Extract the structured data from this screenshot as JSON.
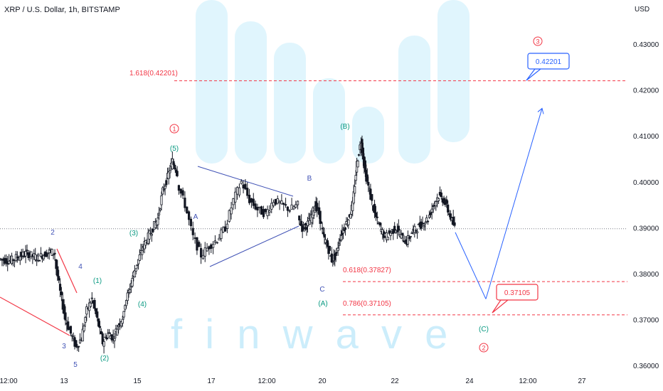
{
  "header": {
    "symbol": "XRP / U.S. Dollar, 1h, BITSTAMP",
    "currency": "USD"
  },
  "watermark": {
    "brand_text": "f i n w a v e"
  },
  "colors": {
    "candle": "#131722",
    "fib_line": "#f23645",
    "projection": "#2962ff",
    "wave_green": "#089981",
    "wave_blue": "#3f51b5",
    "wave_red": "#f23645",
    "triangle": "#3f51b5",
    "watermark": "#c7ecfb"
  },
  "chart_data": {
    "type": "candlestick",
    "x_ticks": [
      "12:00",
      "13",
      "15",
      "17",
      "12:00",
      "20",
      "22",
      "24",
      "12:00",
      "27"
    ],
    "y_ticks": [
      "0.43000",
      "0.42000",
      "0.41000",
      "0.40000",
      "0.39000",
      "0.38000",
      "0.37000",
      "0.36000"
    ],
    "ylim": [
      0.358,
      0.437
    ],
    "current_price": 0.3898,
    "price_path": [
      [
        0.3832,
        0.383,
        0.3828,
        0.3835,
        0.384,
        0.3845,
        0.3838,
        0.3835,
        0.3842,
        0.3848,
        0.3845
      ],
      [
        0.383,
        0.376,
        0.37,
        0.367,
        0.364,
        0.366,
        0.372,
        0.3745,
        0.37,
        0.365,
        0.367,
        0.366,
        0.369,
        0.371
      ],
      [
        0.373,
        0.376,
        0.38,
        0.383,
        0.386,
        0.388,
        0.39,
        0.392,
        0.398,
        0.401,
        0.4045,
        0.402
      ],
      [
        0.4,
        0.395,
        0.388,
        0.384,
        0.386,
        0.3875,
        0.39,
        0.396,
        0.4,
        0.396,
        0.394,
        0.393,
        0.396,
        0.395,
        0.394,
        0.395
      ],
      [
        0.392,
        0.39,
        0.3905,
        0.392,
        0.395,
        0.393,
        0.388,
        0.386,
        0.383,
        0.384,
        0.388,
        0.39,
        0.392,
        0.395,
        0.404,
        0.409,
        0.402,
        0.398
      ],
      [
        0.398,
        0.393,
        0.39,
        0.388,
        0.389,
        0.39,
        0.388,
        0.387,
        0.389,
        0.39,
        0.391,
        0.392,
        0.395,
        0.397,
        0.396,
        0.393,
        0.39
      ]
    ],
    "projection_path": [
      [
        0.389,
        0.3745
      ],
      [
        0.3745,
        0.416
      ]
    ],
    "fib_levels": [
      {
        "label": "1.618(0.42201)",
        "value": 0.42201
      },
      {
        "label": "0.618(0.37827)",
        "value": 0.37827
      },
      {
        "label": "0.786(0.37105)",
        "value": 0.37105
      }
    ],
    "price_labels": [
      "0.42201",
      "0.37105"
    ],
    "wave_labels": {
      "blue": [
        "2",
        "4",
        "3",
        "5",
        "A",
        "B",
        "C"
      ],
      "green": [
        "(1)",
        "(2)",
        "(3)",
        "(4)",
        "(5)",
        "(A)",
        "(B)",
        "(C)"
      ],
      "red_circled": [
        "1",
        "2",
        "3"
      ]
    }
  }
}
